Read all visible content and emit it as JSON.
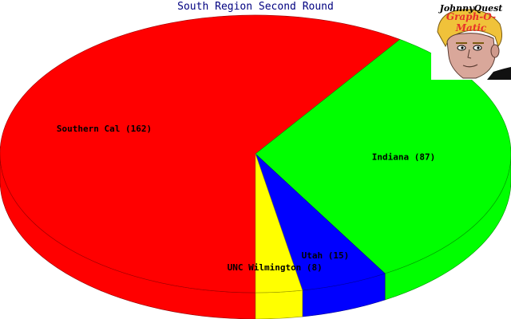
{
  "chart_data": {
    "type": "pie",
    "title": "South Region Second Round",
    "slices": [
      {
        "name": "Southern Cal",
        "value": 162,
        "color": "#ff0000"
      },
      {
        "name": "Indiana",
        "value": 87,
        "color": "#00ff00"
      },
      {
        "name": "Utah",
        "value": 15,
        "color": "#0000ff"
      },
      {
        "name": "UNC Wilmington",
        "value": 8,
        "color": "#ffff00"
      }
    ],
    "style": "3d",
    "legend": "none"
  },
  "logo": {
    "line1": "JohnnyQuest",
    "line2": "Graph-O-Matic",
    "icon": "cartoon-boy-face-icon"
  }
}
